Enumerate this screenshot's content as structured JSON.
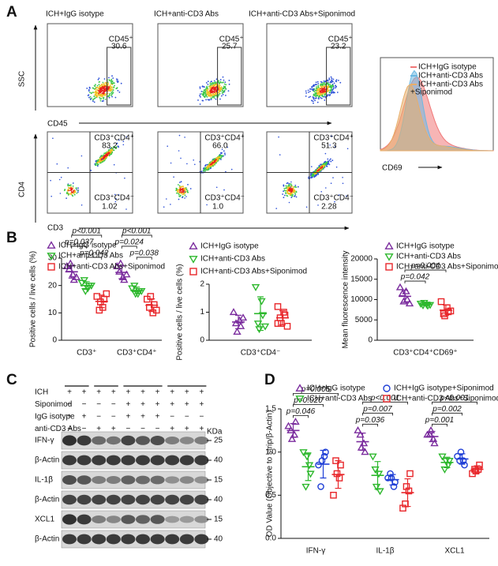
{
  "panel_labels": [
    "A",
    "B",
    "C",
    "D"
  ],
  "panel_a": {
    "column_titles": [
      "ICH+IgG isotype",
      "ICH+anti-CD3 Abs",
      "ICH+anti-CD3 Abs+Siponimod"
    ],
    "axis_labels": {
      "ssc": "SSC",
      "cd45": "CD45",
      "cd4": "CD4",
      "cd3": "CD3",
      "cd69": "CD69"
    },
    "gates": [
      {
        "label": "CD45⁺",
        "value": "30.6"
      },
      {
        "label": "CD45⁺",
        "value": "25.7"
      },
      {
        "label": "CD45⁺",
        "value": "23.2"
      }
    ],
    "quadrants": [
      {
        "upper_label": "CD3⁺CD4⁺",
        "upper_value": "83.2",
        "lower_label": "CD3⁺CD4⁻",
        "lower_value": "1.02"
      },
      {
        "upper_label": "CD3⁺CD4⁺",
        "upper_value": "66.0",
        "lower_label": "CD3⁺CD4⁻",
        "lower_value": "1.0"
      },
      {
        "upper_label": "CD3⁺CD4⁺",
        "upper_value": "51.3",
        "lower_label": "CD3⁺CD4⁻",
        "lower_value": "2.28"
      }
    ],
    "histogram_legend": [
      {
        "text": "ICH+IgG isotype",
        "color": "#f07878"
      },
      {
        "text": "ICH+anti-CD3 Abs",
        "color": "#6cb8e2"
      },
      {
        "text": "ICH+anti-CD3 Abs",
        "continuation": "+Siponimod",
        "color": "#e8ae6a"
      }
    ]
  },
  "chart_data": [
    {
      "type": "dot",
      "ylabel": "Positive cells / live cells (%)",
      "categories": [
        "CD3⁺",
        "CD3⁺CD4⁺"
      ],
      "ylim": [
        0,
        30
      ],
      "yticks": [
        0,
        10,
        20,
        30
      ],
      "series": [
        {
          "name": "ICH+IgG isotype",
          "color": "#7b2d9e",
          "marker": "triangle",
          "values": [
            [
              27,
              24,
              22,
              26,
              28,
              23
            ],
            [
              27,
              23,
              22,
              25,
              28,
              24
            ]
          ],
          "means": [
            25,
            24.8
          ],
          "sds": [
            2.3,
            2.3
          ]
        },
        {
          "name": "ICH+anti-CD3 Abs",
          "color": "#2db82d",
          "marker": "triangle-down",
          "values": [
            [
              21,
              19,
              20,
              22,
              18,
              20
            ],
            [
              19,
              17,
              18,
              20,
              17,
              18
            ]
          ],
          "means": [
            20,
            18.2
          ],
          "sds": [
            1.4,
            1.2
          ]
        },
        {
          "name": "ICH+anti-CD3 Abs+Siponimod",
          "color": "#e8262a",
          "marker": "square",
          "values": [
            [
              16,
              12,
              15,
              11,
              14,
              17
            ],
            [
              15,
              10,
              13,
              12,
              16,
              11
            ]
          ],
          "means": [
            14.2,
            12.8
          ],
          "sds": [
            2.3,
            2.3
          ]
        }
      ],
      "comparisons": [
        [
          "p<0.001",
          "p=0.037",
          "p=0.042"
        ],
        [
          "p<0.001",
          "p=0.024",
          "p=0.038"
        ]
      ]
    },
    {
      "type": "dot",
      "ylabel": "Positive cells / live cells (%)",
      "categories": [
        "CD3⁺CD4⁻"
      ],
      "ylim": [
        0,
        2
      ],
      "yticks": [
        0,
        1,
        2
      ],
      "series": [
        {
          "name": "ICH+IgG isotype",
          "color": "#7b2d9e",
          "marker": "triangle",
          "values": [
            [
              1.0,
              0.7,
              0.5,
              0.6,
              0.3,
              0.8
            ]
          ],
          "means": [
            0.65
          ],
          "sds": [
            0.24
          ]
        },
        {
          "name": "ICH+anti-CD3 Abs",
          "color": "#2db82d",
          "marker": "triangle-down",
          "values": [
            [
              1.9,
              1.4,
              0.9,
              0.6,
              0.4,
              0.5
            ]
          ],
          "means": [
            0.95
          ],
          "sds": [
            0.6
          ]
        },
        {
          "name": "ICH+anti-CD3 Abs+Siponimod",
          "color": "#e8262a",
          "marker": "square",
          "values": [
            [
              1.2,
              1.0,
              0.9,
              0.8,
              0.6,
              0.5,
              0.6
            ]
          ],
          "means": [
            0.8
          ],
          "sds": [
            0.25
          ]
        }
      ]
    },
    {
      "type": "dot",
      "ylabel": "Mean fluorescence intensity",
      "categories": [
        "CD3⁺CD4⁺CD69⁺"
      ],
      "ylim": [
        0,
        20000
      ],
      "yticks": [
        0,
        5000,
        10000,
        15000,
        20000
      ],
      "series": [
        {
          "name": "ICH+IgG isotype",
          "color": "#7b2d9e",
          "marker": "triangle",
          "values": [
            [
              13000,
              12000,
              10000,
              11500,
              9500,
              9000
            ]
          ],
          "means": [
            10800
          ],
          "sds": [
            1500
          ]
        },
        {
          "name": "ICH+anti-CD3 Abs",
          "color": "#2db82d",
          "marker": "triangle-down",
          "values": [
            [
              9000,
              8800,
              8500,
              8600,
              9200,
              8700
            ]
          ],
          "means": [
            8800
          ],
          "sds": [
            260
          ]
        },
        {
          "name": "ICH+anti-CD3 Abs+Siponimod",
          "color": "#e8262a",
          "marker": "square",
          "values": [
            [
              9500,
              8000,
              7000,
              6500,
              6000,
              7200
            ]
          ],
          "means": [
            7400
          ],
          "sds": [
            1250
          ]
        }
      ],
      "comparisons": [
        [
          "p=0.004",
          "p=0.042"
        ]
      ]
    },
    {
      "type": "dot",
      "ylabel": "OD Value (Objective to strip/β-Actin)",
      "categories": [
        "IFN-γ",
        "IL-1β",
        "XCL1"
      ],
      "ylim": [
        0,
        1.5
      ],
      "yticks": [
        {
          "value": 0,
          "label": "0.0"
        },
        0.5,
        {
          "value": 1,
          "label": "1.0"
        },
        1.5
      ],
      "series": [
        {
          "name": "ICH+IgG isotype",
          "color": "#7b2d9e",
          "marker": "triangle",
          "values": [
            [
              1.3,
              1.2,
              1.35,
              1.25,
              1.15
            ],
            [
              1.25,
              1.1,
              1.0,
              1.2,
              1.05
            ],
            [
              1.2,
              1.15,
              1.1,
              1.2,
              1.25
            ]
          ],
          "means": [
            1.25,
            1.12,
            1.18
          ],
          "sds": [
            0.08,
            0.1,
            0.06
          ]
        },
        {
          "name": "ICH+anti-CD3 Abs",
          "color": "#2db82d",
          "marker": "triangle-down",
          "values": [
            [
              1.0,
              0.85,
              0.75,
              0.6,
              0.95
            ],
            [
              0.95,
              0.75,
              0.55,
              0.8,
              0.6
            ],
            [
              0.95,
              0.85,
              0.9,
              0.8,
              0.9
            ]
          ],
          "means": [
            0.83,
            0.73,
            0.88
          ],
          "sds": [
            0.16,
            0.16,
            0.06
          ]
        },
        {
          "name": "ICH+IgG isotype+Siponimod",
          "color": "#1f3fd6",
          "marker": "circle",
          "values": [
            [
              0.85,
              0.95,
              1.0,
              0.6,
              0.9
            ],
            [
              0.7,
              0.6,
              0.65,
              0.75,
              0.7
            ],
            [
              0.95,
              0.9,
              0.85,
              0.9,
              1.0
            ]
          ],
          "means": [
            0.86,
            0.68,
            0.92
          ],
          "sds": [
            0.16,
            0.06,
            0.06
          ]
        },
        {
          "name": "ICH+anti-CD3 Abs+Siponimod",
          "color": "#e8262a",
          "marker": "square",
          "values": [
            [
              0.5,
              0.7,
              0.85,
              0.9,
              0.75
            ],
            [
              0.35,
              0.55,
              0.75,
              0.4,
              0.6
            ],
            [
              0.75,
              0.8,
              0.85,
              0.8,
              0.78
            ]
          ],
          "means": [
            0.74,
            0.53,
            0.8
          ],
          "sds": [
            0.16,
            0.16,
            0.04
          ]
        }
      ],
      "comparisons": [
        [
          "p=0.005",
          "p=0.020",
          "p=0.046"
        ],
        [
          "p<0.001",
          "p=0.007",
          "p=0.036"
        ],
        [
          "p<0.001",
          "p=0.002",
          "p=0.001"
        ]
      ]
    }
  ],
  "panel_c": {
    "rows": [
      {
        "label": "ICH",
        "signs": [
          "+",
          "+",
          "+",
          "+",
          "+",
          "+",
          "+",
          "+",
          "+",
          "+"
        ]
      },
      {
        "label": "Siponimod",
        "signs": [
          "−",
          "−",
          "−",
          "−",
          "+",
          "+",
          "+",
          "+",
          "+",
          "+"
        ]
      },
      {
        "label": "IgG isotype",
        "signs": [
          "+",
          "+",
          "−",
          "−",
          "+",
          "+",
          "+",
          "−",
          "−",
          "−"
        ]
      },
      {
        "label": "anti-CD3 Abs",
        "signs": [
          "−",
          "−",
          "+",
          "+",
          "−",
          "−",
          "−",
          "+",
          "+",
          "+"
        ]
      }
    ],
    "kda_label": "KDa",
    "blots": [
      {
        "label": "IFN-γ",
        "kda": "25"
      },
      {
        "label": "β-Actin",
        "kda": "40"
      },
      {
        "label": "IL-1β",
        "kda": "15"
      },
      {
        "label": "β-Actin",
        "kda": "40"
      },
      {
        "label": "XCL1",
        "kda": "15"
      },
      {
        "label": "β-Actin",
        "kda": "40"
      }
    ]
  }
}
